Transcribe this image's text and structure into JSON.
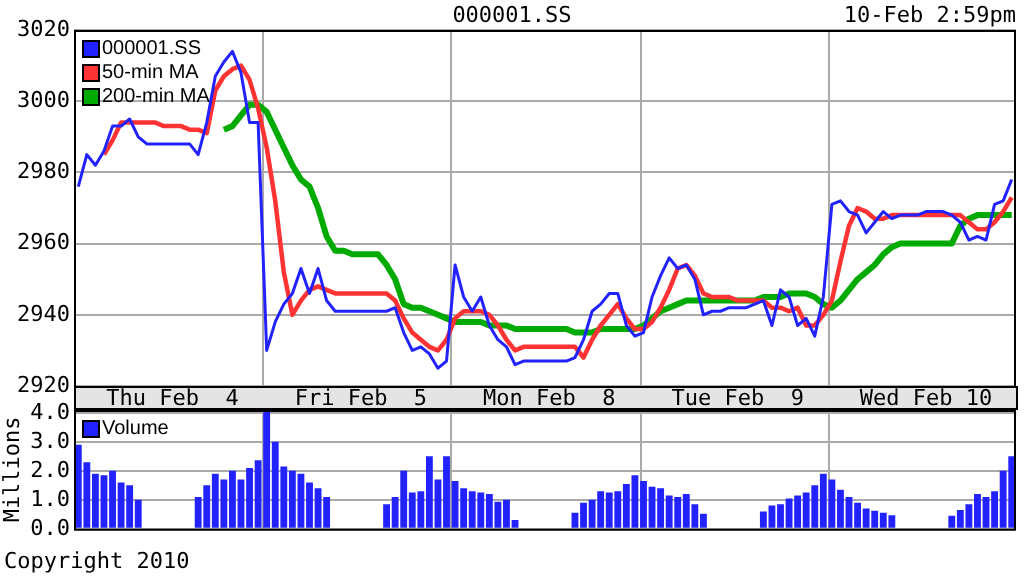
{
  "chart_data": [
    {
      "type": "line",
      "title": "000001.SS",
      "subtitle": "10-Feb 2:59pm",
      "ylim": [
        2920,
        3020
      ],
      "yticks": [
        2920,
        2940,
        2960,
        2980,
        3000,
        3020
      ],
      "categories": [
        null,
        null,
        null,
        null,
        null,
        null,
        null,
        null,
        null,
        null,
        null,
        "Thu Feb  4",
        null,
        null,
        null,
        null,
        null,
        null,
        null,
        null,
        null,
        null,
        null,
        null,
        null,
        null,
        null,
        null,
        null,
        null,
        null,
        null,
        null,
        "Fri Feb  5",
        null,
        null,
        null,
        null,
        null,
        null,
        null,
        null,
        null,
        null,
        null,
        null,
        null,
        null,
        null,
        null,
        null,
        null,
        null,
        null,
        null,
        "Mon Feb  8",
        null,
        null,
        null,
        null,
        null,
        null,
        null,
        null,
        null,
        null,
        null,
        null,
        null,
        null,
        null,
        null,
        null,
        null,
        null,
        null,
        null,
        "Tue Feb  9",
        null,
        null,
        null,
        null,
        null,
        null,
        null,
        null,
        null,
        null,
        null,
        null,
        null,
        null,
        null,
        null,
        null,
        null,
        null,
        null,
        null,
        "Wed Feb 10",
        null,
        null,
        null,
        null,
        null,
        null,
        null,
        null,
        null,
        null
      ],
      "grid": true,
      "legend": "top left",
      "marker": "none",
      "series": [
        {
          "name": "000001.SS",
          "color": "#2222ff",
          "values": [
            2976,
            2985,
            2982,
            2986,
            2993,
            2993,
            2995,
            2990,
            2988,
            2988,
            2988,
            2988,
            2988,
            2988,
            2985,
            2994,
            3007,
            3011,
            3014,
            3008,
            2994,
            2994,
            2930,
            2938,
            2943,
            2946,
            2953,
            2946,
            2953,
            2944,
            2941,
            2941,
            2941,
            2941,
            2941,
            2941,
            2941,
            2942,
            2935,
            2930,
            2931,
            2929,
            2925,
            2927,
            2954,
            2945,
            2941,
            2945,
            2937,
            2933,
            2931,
            2926,
            2927,
            2927,
            2927,
            2927,
            2927,
            2927,
            2928,
            2933,
            2941,
            2943,
            2946,
            2946,
            2937,
            2934,
            2935,
            2945,
            2951,
            2956,
            2953,
            2954,
            2950,
            2940,
            2941,
            2941,
            2942,
            2942,
            2942,
            2943,
            2944,
            2937,
            2947,
            2945,
            2937,
            2939,
            2934,
            2945,
            2971,
            2972,
            2969,
            2968,
            2963,
            2966,
            2969,
            2967,
            2968,
            2968,
            2968,
            2969,
            2969,
            2969,
            2968,
            2966,
            2961,
            2962,
            2961,
            2971,
            2972,
            2978
          ]
        },
        {
          "name": "50-min MA",
          "color": "#ff3333",
          "values": [
            null,
            null,
            null,
            2985,
            2989,
            2994,
            2994,
            2994,
            2994,
            2994,
            2993,
            2993,
            2993,
            2992,
            2992,
            2991,
            3003,
            3007,
            3009,
            3010,
            3006,
            2998,
            2987,
            2972,
            2952,
            2940,
            2944,
            2947,
            2948,
            2947,
            2946,
            2946,
            2946,
            2946,
            2946,
            2946,
            2946,
            2944,
            2939,
            2935,
            2933,
            2931,
            2930,
            2933,
            2939,
            2941,
            2941,
            2941,
            2940,
            2937,
            2933,
            2930,
            2931,
            2931,
            2931,
            2931,
            2931,
            2931,
            2931,
            2928,
            2933,
            2937,
            2940,
            2943,
            2939,
            2936,
            2936,
            2938,
            2942,
            2947,
            2953,
            2954,
            2951,
            2946,
            2945,
            2945,
            2945,
            2944,
            2944,
            2944,
            2944,
            2942,
            2942,
            2941,
            2942,
            2937,
            2937,
            2940,
            2944,
            2955,
            2965,
            2970,
            2969,
            2967,
            2967,
            2968,
            2968,
            2968,
            2968,
            2968,
            2968,
            2968,
            2968,
            2968,
            2966,
            2964,
            2964,
            2966,
            2969,
            2973
          ]
        },
        {
          "name": "200-min MA",
          "color": "#00aa00",
          "values": [
            null,
            null,
            null,
            null,
            null,
            null,
            null,
            null,
            null,
            null,
            null,
            null,
            null,
            null,
            null,
            null,
            null,
            2992,
            2993,
            2996,
            2999,
            2999,
            2997,
            2992,
            2987,
            2982,
            2978,
            2976,
            2970,
            2962,
            2958,
            2958,
            2957,
            2957,
            2957,
            2957,
            2954,
            2950,
            2943,
            2942,
            2942,
            2941,
            2940,
            2939,
            2938,
            2938,
            2938,
            2938,
            2937,
            2937,
            2937,
            2936,
            2936,
            2936,
            2936,
            2936,
            2936,
            2936,
            2935,
            2935,
            2935,
            2936,
            2936,
            2936,
            2936,
            2936,
            2937,
            2939,
            2941,
            2942,
            2943,
            2944,
            2944,
            2944,
            2944,
            2944,
            2944,
            2944,
            2944,
            2944,
            2945,
            2945,
            2945,
            2946,
            2946,
            2946,
            2945,
            2943,
            2942,
            2944,
            2947,
            2950,
            2952,
            2954,
            2957,
            2959,
            2960,
            2960,
            2960,
            2960,
            2960,
            2960,
            2960,
            2965,
            2967,
            2968,
            2968,
            2968,
            2968,
            2968
          ]
        }
      ]
    },
    {
      "type": "bar",
      "ylabel": "Millions",
      "ylim": [
        0,
        4.1
      ],
      "yticks": [
        {
          "value": 0,
          "label": "0.0"
        },
        {
          "value": 1,
          "label": "1.0"
        },
        {
          "value": 2,
          "label": "2.0"
        },
        {
          "value": 3,
          "label": "3.0"
        },
        {
          "value": 4,
          "label": "4.0"
        }
      ],
      "categories": [
        null,
        null,
        null,
        null,
        null,
        null,
        null,
        null,
        null,
        null,
        null,
        null,
        null,
        null,
        null,
        null,
        null,
        null,
        null,
        null,
        null,
        null,
        null,
        null,
        null,
        null,
        null,
        null,
        null,
        null,
        null,
        null,
        null,
        null,
        null,
        null,
        null,
        null,
        null,
        null,
        null,
        null,
        null,
        null,
        null,
        null,
        null,
        null,
        null,
        null,
        null,
        null,
        null,
        null,
        null,
        null,
        null,
        null,
        null,
        null,
        null,
        null,
        null,
        null,
        null,
        null,
        null,
        null,
        null,
        null,
        null,
        null,
        null,
        null,
        null,
        null,
        null,
        null,
        null,
        null,
        null,
        null,
        null,
        null,
        null,
        null,
        null,
        null,
        null,
        null,
        null,
        null,
        null,
        null,
        null,
        null,
        null,
        null,
        null,
        null,
        null,
        null,
        null,
        null,
        null,
        null,
        null,
        null,
        null,
        null
      ],
      "tick_labels": "y",
      "grid": true,
      "legend": "top left",
      "annotations": [
        "Copyright 2010"
      ],
      "series": [
        {
          "name": "Volume",
          "color": "#2222ff",
          "values": [
            2.9,
            2.3,
            1.9,
            1.85,
            2.0,
            1.6,
            1.5,
            1.0,
            null,
            null,
            null,
            null,
            null,
            null,
            1.1,
            1.5,
            1.9,
            1.7,
            2.0,
            1.7,
            2.1,
            2.37,
            4.1,
            3.0,
            2.15,
            2.0,
            1.9,
            1.6,
            1.4,
            1.1,
            null,
            null,
            null,
            null,
            null,
            null,
            0.85,
            1.1,
            2.0,
            1.25,
            1.3,
            2.5,
            1.7,
            2.5,
            1.65,
            1.4,
            1.3,
            1.25,
            1.2,
            0.93,
            1.0,
            0.3,
            null,
            null,
            null,
            null,
            null,
            null,
            0.55,
            0.9,
            1.0,
            1.3,
            1.25,
            1.3,
            1.55,
            1.85,
            1.65,
            1.45,
            1.4,
            1.15,
            1.1,
            1.2,
            0.85,
            0.52,
            null,
            null,
            null,
            null,
            null,
            null,
            0.6,
            0.8,
            0.85,
            1.05,
            1.15,
            1.25,
            1.5,
            1.9,
            1.7,
            1.35,
            1.1,
            0.9,
            0.7,
            0.62,
            0.55,
            0.47,
            null,
            null,
            null,
            null,
            null,
            null,
            0.45,
            0.65,
            0.85,
            1.2,
            1.1,
            1.3,
            2.0,
            2.5
          ]
        }
      ]
    }
  ]
}
